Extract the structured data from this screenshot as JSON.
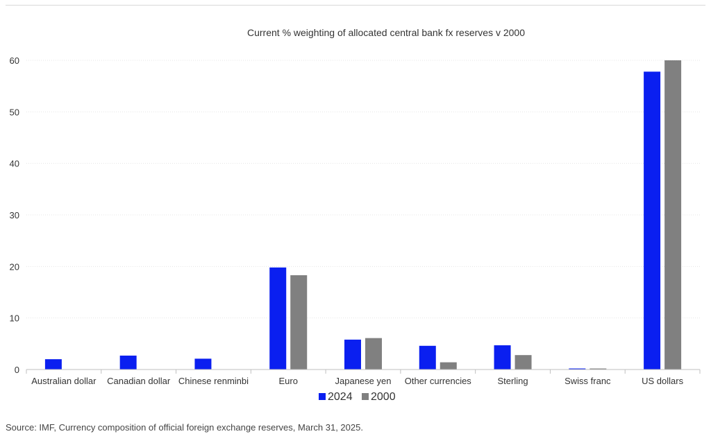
{
  "chart_data": {
    "type": "bar",
    "title": "Current % weighting of allocated central bank fx reserves v 2000",
    "xlabel": "",
    "ylabel": "",
    "categories": [
      "Australian dollar",
      "Canadian dollar",
      "Chinese renminbi",
      "Euro",
      "Japanese yen",
      "Other currencies",
      "Sterling",
      "Swiss franc",
      "US dollars"
    ],
    "series": [
      {
        "name": "2024",
        "color": "#0a1ff0",
        "values": [
          2.0,
          2.7,
          2.1,
          19.8,
          5.8,
          4.6,
          4.7,
          0.2,
          57.8
        ]
      },
      {
        "name": "2000",
        "color": "#808080",
        "values": [
          null,
          null,
          null,
          18.3,
          6.1,
          1.4,
          2.8,
          0.2,
          60.0
        ]
      }
    ],
    "ylim": [
      0,
      60
    ],
    "yticks": [
      0,
      10,
      20,
      30,
      40,
      50,
      60
    ],
    "grid": true,
    "legend": "bottom-center"
  },
  "footer": {
    "source": "Source: IMF, Currency composition of official foreign exchange reserves, March 31, 2025."
  }
}
